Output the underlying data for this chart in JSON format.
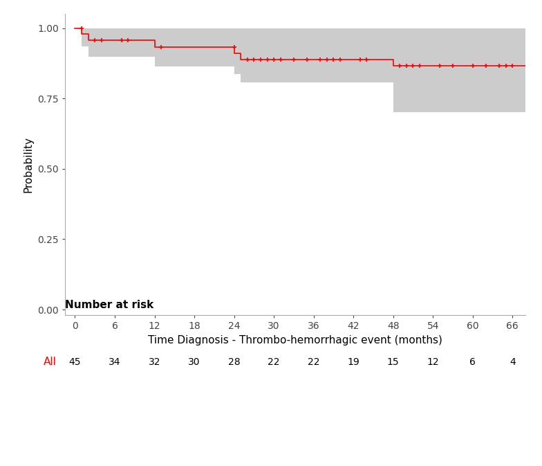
{
  "xlabel": "Time Diagnosis - Thrombo-hemorrhagic event (months)",
  "ylabel": "Probability",
  "xlim": [
    -1.5,
    68
  ],
  "ylim": [
    -0.02,
    1.05
  ],
  "xticks": [
    0,
    6,
    12,
    18,
    24,
    30,
    36,
    42,
    48,
    54,
    60,
    66
  ],
  "yticks": [
    0.0,
    0.25,
    0.5,
    0.75,
    1.0
  ],
  "line_color": "#FF0000",
  "ci_color": "#CCCCCC",
  "km_step_t": [
    0,
    1,
    1,
    2,
    2,
    12,
    12,
    24,
    24,
    25,
    25,
    48,
    48,
    66
  ],
  "km_step_s": [
    1.0,
    1.0,
    0.978,
    0.978,
    0.956,
    0.956,
    0.933,
    0.933,
    0.911,
    0.911,
    0.889,
    0.889,
    0.867,
    0.867
  ],
  "km_step_lo": [
    1.0,
    1.0,
    0.935,
    0.935,
    0.897,
    0.897,
    0.864,
    0.864,
    0.836,
    0.836,
    0.806,
    0.806,
    0.7,
    0.7
  ],
  "km_step_hi": [
    1.0,
    1.0,
    1.0,
    1.0,
    1.0,
    1.0,
    1.0,
    1.0,
    1.0,
    1.0,
    1.0,
    1.0,
    1.0,
    1.0
  ],
  "censor_times": [
    1,
    3,
    4,
    7,
    8,
    13,
    24,
    26,
    27,
    28,
    29,
    30,
    31,
    33,
    35,
    37,
    38,
    39,
    40,
    43,
    44,
    49,
    50,
    51,
    52,
    55,
    57,
    60,
    62,
    64,
    65,
    66
  ],
  "censor_surv": [
    1.0,
    0.956,
    0.956,
    0.956,
    0.956,
    0.933,
    0.933,
    0.889,
    0.889,
    0.889,
    0.889,
    0.889,
    0.889,
    0.889,
    0.889,
    0.889,
    0.889,
    0.889,
    0.889,
    0.889,
    0.889,
    0.867,
    0.867,
    0.867,
    0.867,
    0.867,
    0.867,
    0.867,
    0.867,
    0.867,
    0.867,
    0.867
  ],
  "risk_times": [
    0,
    6,
    12,
    18,
    24,
    30,
    36,
    42,
    48,
    54,
    60,
    66
  ],
  "risk_counts": [
    45,
    34,
    32,
    30,
    28,
    22,
    22,
    19,
    15,
    12,
    6,
    4
  ],
  "risk_label": "All",
  "risk_label_color": "#FF0000",
  "number_at_risk_label": "Number at risk",
  "background_color": "#FFFFFF",
  "spine_color": "#AAAAAA",
  "tick_label_color": "#444444",
  "tick_label_size": 10,
  "axis_label_size": 11,
  "risk_label_size": 11,
  "risk_count_size": 10
}
